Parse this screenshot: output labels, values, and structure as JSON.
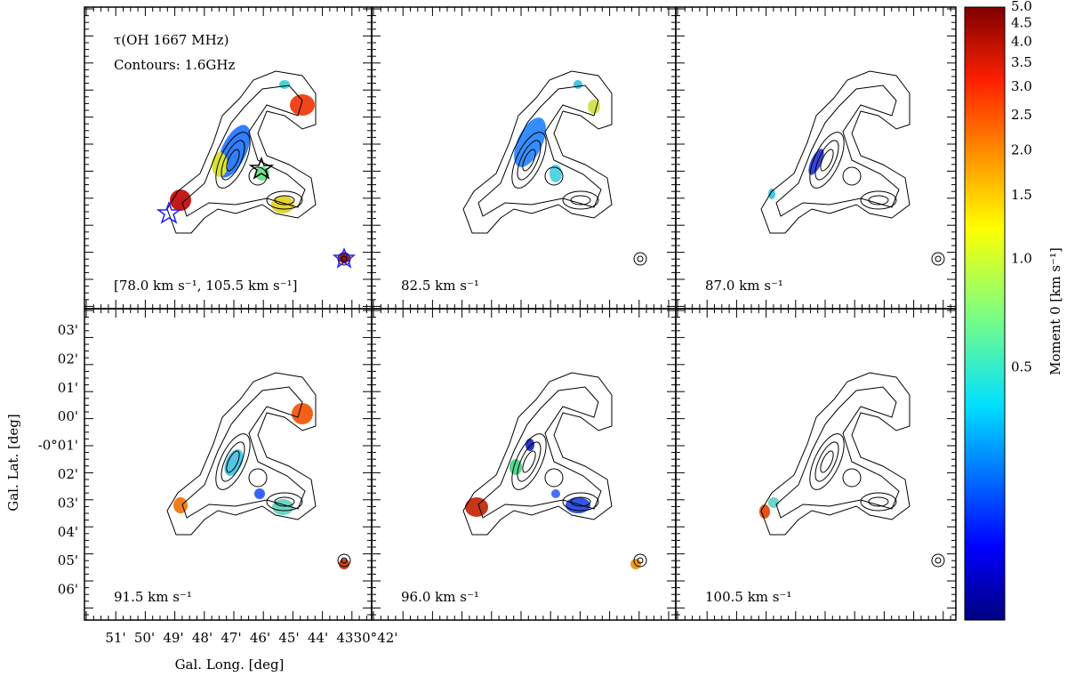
{
  "figure": {
    "panels": [
      {
        "labels": [
          "τ(OH 1667 MHz)",
          "Contours: 1.6GHz",
          "[78.0 km s⁻¹, 105.5 km s⁻¹]"
        ]
      },
      {
        "labels": [
          "82.5 km s⁻¹"
        ]
      },
      {
        "labels": [
          "87.0 km s⁻¹"
        ]
      },
      {
        "labels": [
          "91.5 km s⁻¹"
        ]
      },
      {
        "labels": [
          "96.0 km s⁻¹"
        ]
      },
      {
        "labels": [
          "100.5 km s⁻¹"
        ]
      }
    ],
    "x_label": "Gal. Long. [deg]",
    "y_label": "Gal. Lat. [deg]",
    "x_ticks": [
      "51'",
      "50'",
      "49'",
      "48'",
      "47'",
      "46'",
      "45'",
      "44'",
      "43'",
      "30°42'"
    ],
    "y_ticks": [
      "03'",
      "02'",
      "01'",
      "00'",
      "-0°01'",
      "02'",
      "03'",
      "04'",
      "05'",
      "06'"
    ],
    "colorbar": {
      "label": "Moment 0 [km s⁻¹]",
      "log": true,
      "lim": [
        0.1,
        5
      ],
      "ticks": [
        {
          "value": 5,
          "label": "5.0"
        },
        4.5,
        {
          "value": 4,
          "label": "4.0"
        },
        3.5,
        {
          "value": 3,
          "label": "3.0"
        },
        2.5,
        {
          "value": 2,
          "label": "2.0"
        },
        1.5,
        {
          "value": 1,
          "label": "1.0"
        },
        0.5
      ]
    }
  }
}
